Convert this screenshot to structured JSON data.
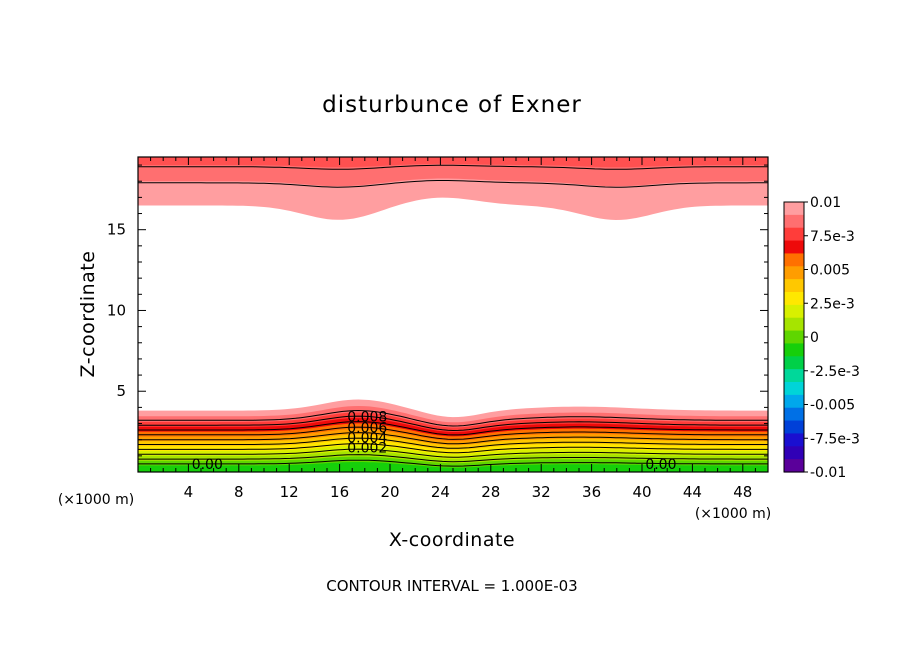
{
  "chart_data": {
    "type": "contour",
    "title": "disturbunce of Exner",
    "xlabel": "X-coordinate",
    "ylabel": "Z-coordinate",
    "x_unit": "(×1000 m)",
    "x_unit_right": "(×1000 m)",
    "xlim": [
      0,
      50
    ],
    "ylim": [
      0,
      19.5
    ],
    "x_ticks": [
      "4",
      "8",
      "12",
      "16",
      "20",
      "24",
      "28",
      "32",
      "36",
      "40",
      "44",
      "48"
    ],
    "y_ticks": [
      "5",
      "10",
      "15"
    ],
    "colorbar": {
      "labels": [
        "0.01",
        "7.5e-3",
        "0.005",
        "2.5e-3",
        "0",
        "-2.5e-3",
        "-0.005",
        "-7.5e-3",
        "-0.01"
      ],
      "range": [
        -0.01,
        0.01
      ],
      "colors": [
        "#ff9ea0",
        "#ff6f70",
        "#ff3d3a",
        "#ee0a0a",
        "#ff7000",
        "#ff9d00",
        "#ffc800",
        "#ffe800",
        "#d8f000",
        "#a6e400",
        "#5fd600",
        "#16cf0a",
        "#00d048",
        "#00d89a",
        "#00d4d8",
        "#00a8ec",
        "#0070e6",
        "#0040d8",
        "#1a0fd0",
        "#3000b6",
        "#5a009a"
      ]
    },
    "contour_labels": [
      "0.008",
      "0.006",
      "0.004",
      "0.002",
      "0.00",
      "0.00"
    ],
    "contour_interval_text": "CONTOUR INTERVAL = 1.000E-03",
    "bottom_contours": [
      0,
      0.001,
      0.002,
      0.003,
      0.004,
      0.005,
      0.006,
      0.007,
      0.008,
      0.009
    ],
    "top_contours": [
      0.009,
      0.008
    ]
  }
}
